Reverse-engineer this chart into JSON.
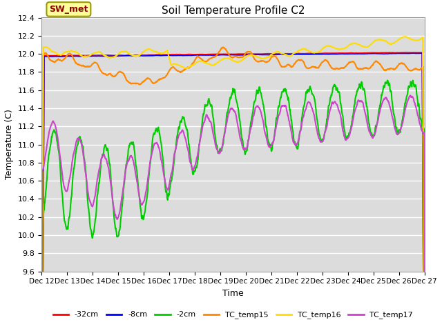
{
  "title": "Soil Temperature Profile C2",
  "xlabel": "Time",
  "ylabel": "Temperature (C)",
  "ylim": [
    9.6,
    12.4
  ],
  "yticks": [
    9.6,
    9.8,
    10.0,
    10.2,
    10.4,
    10.6,
    10.8,
    11.0,
    11.2,
    11.4,
    11.6,
    11.8,
    12.0,
    12.2,
    12.4
  ],
  "background_color": "#dcdcdc",
  "fig_background": "#ffffff",
  "sw_met_label": "SW_met",
  "sw_met_bg": "#ffff99",
  "sw_met_text_color": "#8b0000",
  "legend_labels": [
    "-32cm",
    "-8cm",
    "-2cm",
    "TC_temp15",
    "TC_temp16",
    "TC_temp17"
  ],
  "line_colors": [
    "#ff0000",
    "#0000ff",
    "#00cc00",
    "#ff8800",
    "#ffdd00",
    "#cc44cc"
  ],
  "xtick_labels": [
    "Dec 12",
    "Dec 13",
    "Dec 14",
    "Dec 15",
    "Dec 16",
    "Dec 17",
    "Dec 18",
    "Dec 19",
    "Dec 20",
    "Dec 21",
    "Dec 22",
    "Dec 23",
    "Dec 24",
    "Dec 25",
    "Dec 26",
    "Dec 27"
  ],
  "grid_color": "#ffffff",
  "num_days": 15,
  "hours_per_day": 24
}
